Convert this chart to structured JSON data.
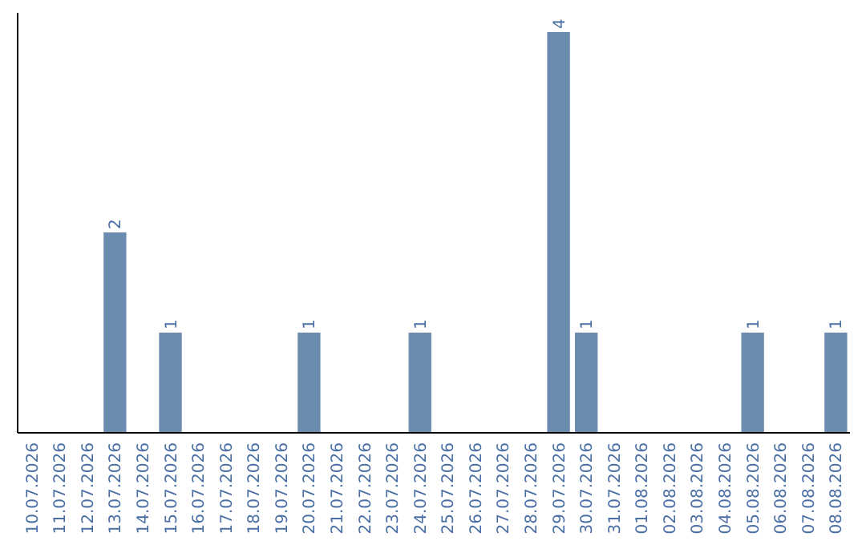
{
  "chart_data": {
    "type": "bar",
    "categories": [
      "10.07.2026",
      "11.07.2026",
      "12.07.2026",
      "13.07.2026",
      "14.07.2026",
      "15.07.2026",
      "16.07.2026",
      "17.07.2026",
      "18.07.2026",
      "19.07.2026",
      "20.07.2026",
      "21.07.2026",
      "22.07.2026",
      "23.07.2026",
      "24.07.2026",
      "25.07.2026",
      "26.07.2026",
      "27.07.2026",
      "28.07.2026",
      "29.07.2026",
      "30.07.2026",
      "31.07.2026",
      "01.08.2026",
      "02.08.2026",
      "03.08.2026",
      "04.08.2026",
      "05.08.2026",
      "06.08.2026",
      "07.08.2026",
      "08.08.2026"
    ],
    "values": [
      0,
      0,
      0,
      2,
      0,
      1,
      0,
      0,
      0,
      0,
      1,
      0,
      0,
      0,
      1,
      0,
      0,
      0,
      0,
      4,
      1,
      0,
      0,
      0,
      0,
      0,
      1,
      0,
      0,
      1
    ],
    "value_labels": [
      null,
      null,
      null,
      "2",
      null,
      "1",
      null,
      null,
      null,
      null,
      "1",
      null,
      null,
      null,
      "1",
      null,
      null,
      null,
      null,
      "4",
      "1",
      null,
      null,
      null,
      null,
      null,
      "1",
      null,
      null,
      "1"
    ],
    "color": "#6b8cae",
    "ylim": [
      0,
      4
    ],
    "tick_labels": "x",
    "grid": false
  }
}
